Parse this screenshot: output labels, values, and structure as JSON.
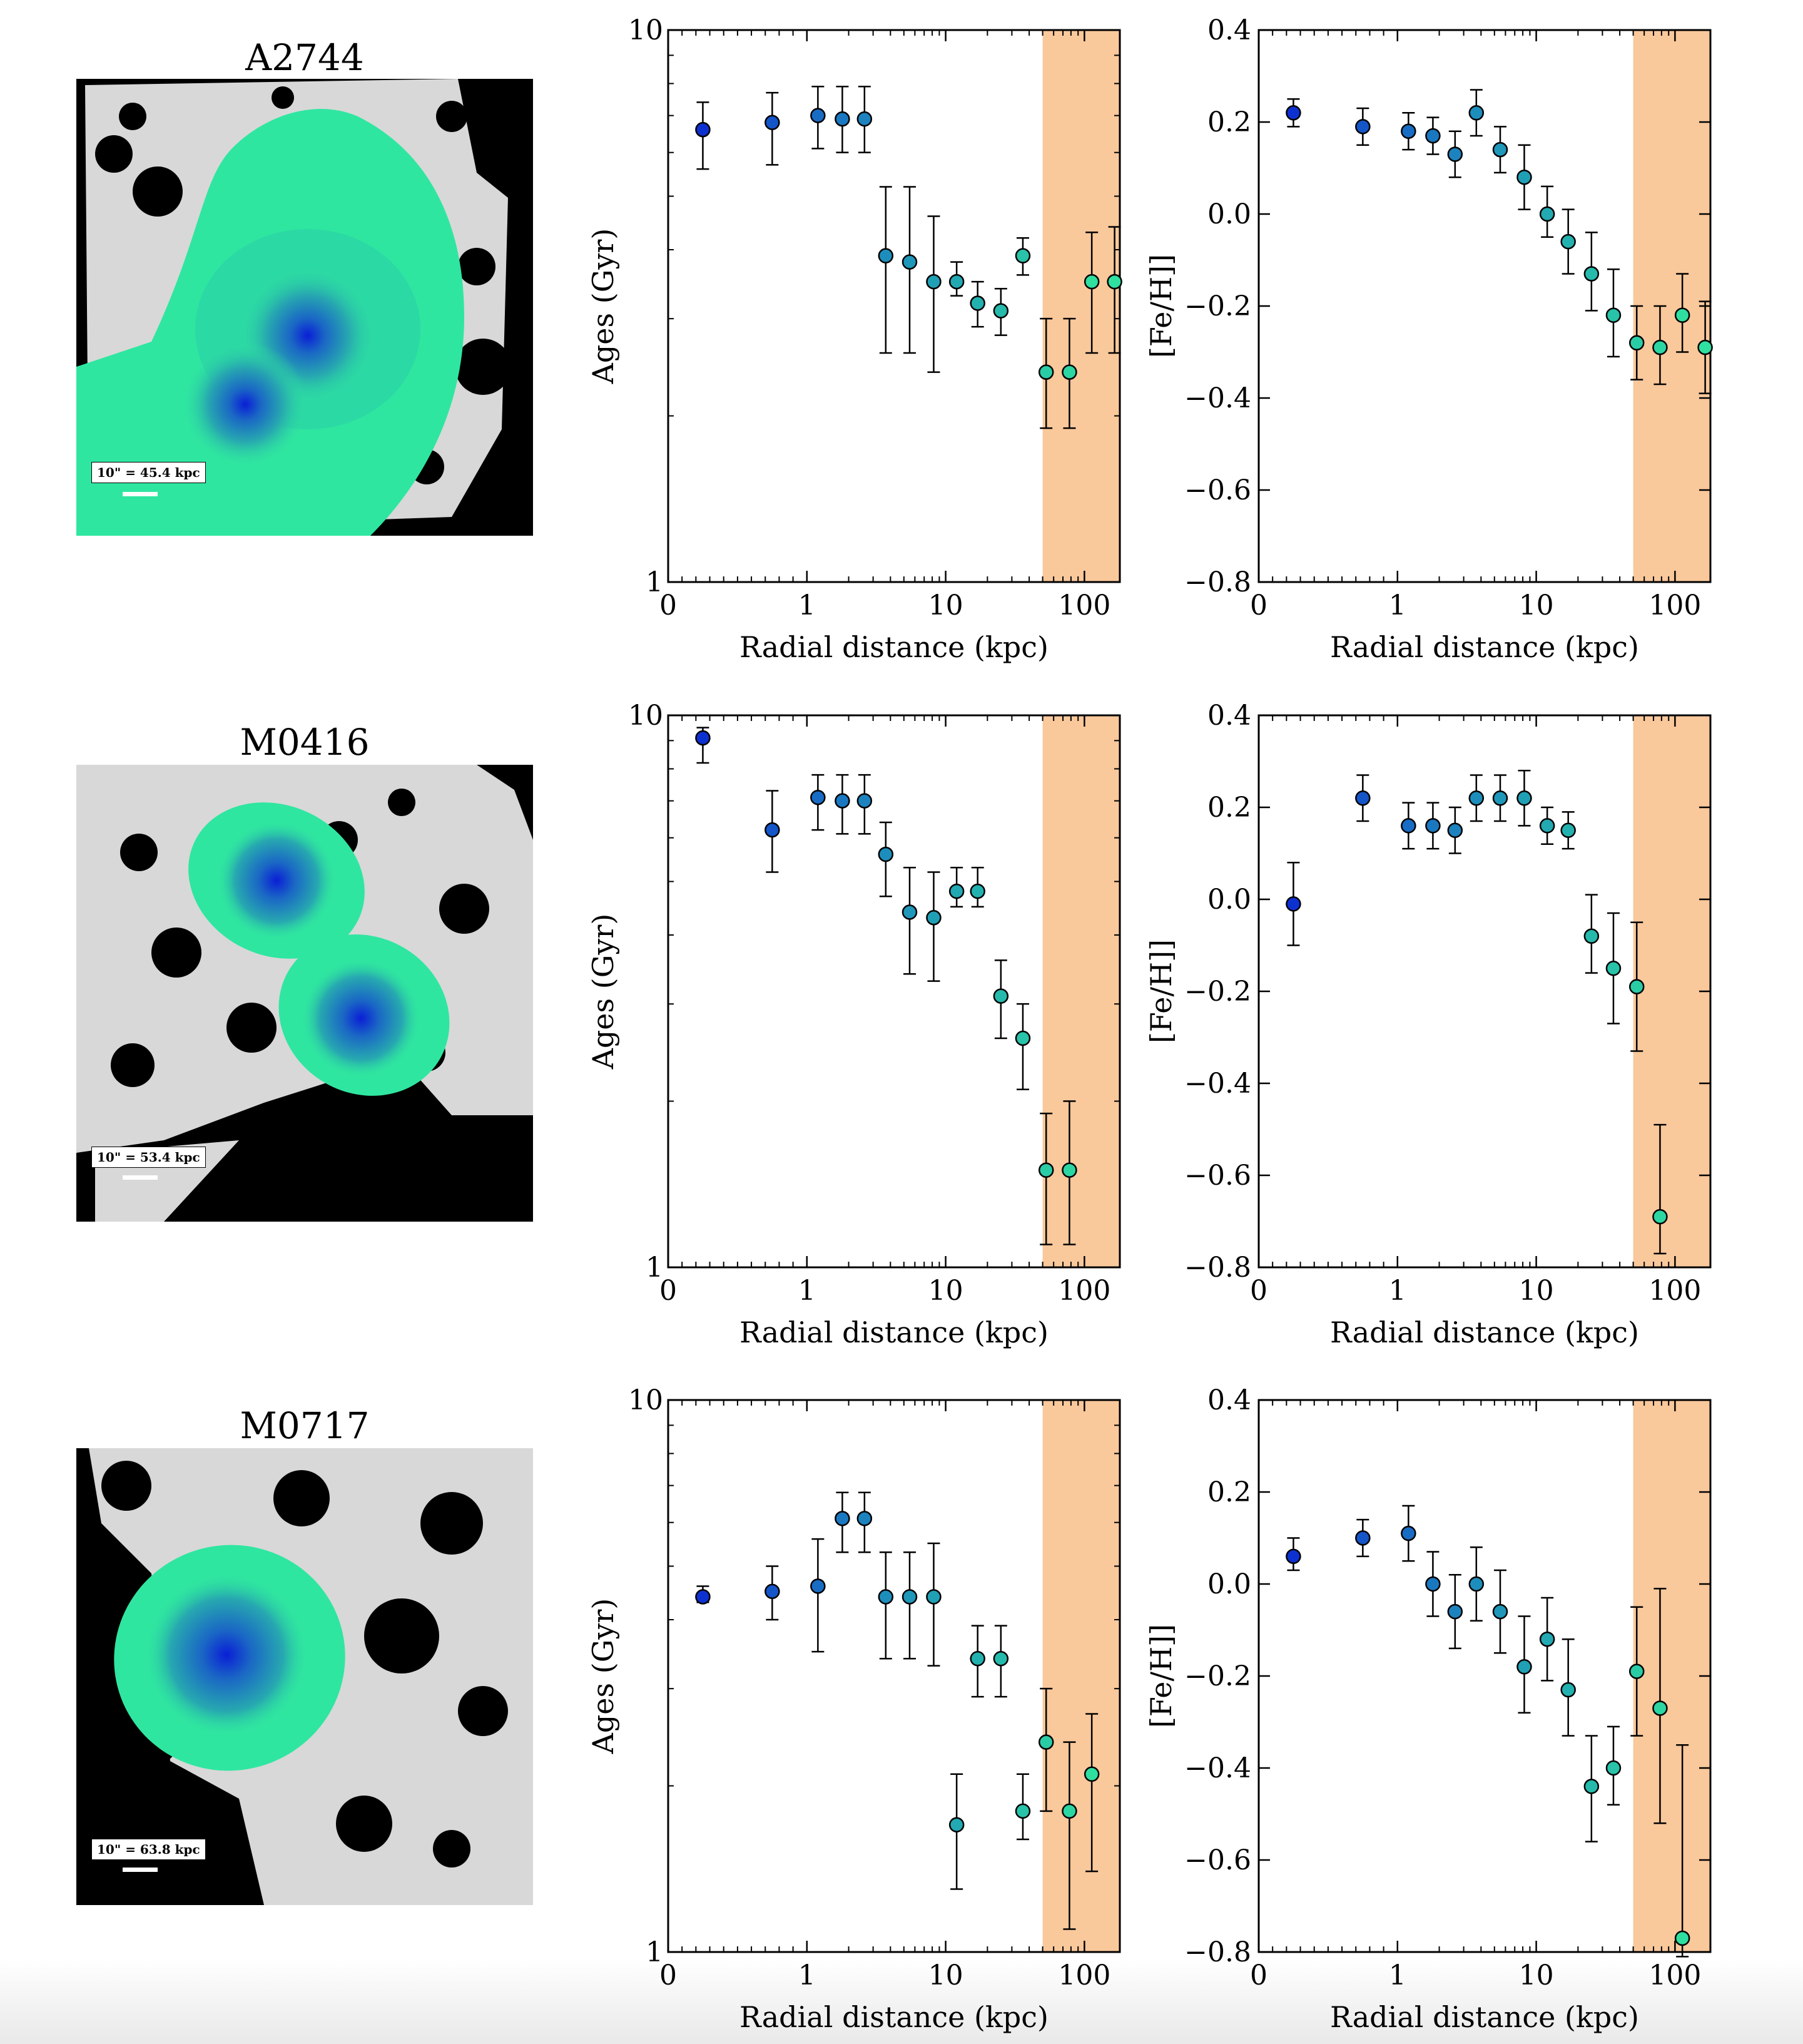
{
  "colors": {
    "band": "#f9c89b",
    "marker_edge": "#000000",
    "errorbar": "#000000",
    "gradient_stops": [
      "#0a1fd6",
      "#1456c8",
      "#1d8cbd",
      "#24b5ad",
      "#2fe0a0"
    ],
    "map_fill": "#2fe6a0",
    "map_bg": "#d9d9d9"
  },
  "panels": [
    {
      "name": "A2744",
      "scale_label": "10\" = 45.4 kpc"
    },
    {
      "name": "M0416",
      "scale_label": "10\" = 53.4 kpc"
    },
    {
      "name": "M0717",
      "scale_label": "10\" = 63.8 kpc"
    }
  ],
  "chart_data": [
    {
      "panel": "A2744",
      "type": "scatter",
      "quantity": "ages",
      "xlabel": "Radial distance (kpc)",
      "ylabel": "Ages (Gyr)",
      "xscale": "symlog",
      "xlim": [
        0,
        180
      ],
      "xticks": [
        "0",
        "1",
        "10",
        "100"
      ],
      "yscale": "log",
      "ylim": [
        1,
        10
      ],
      "yticks": [
        "1",
        "10"
      ],
      "shaded_range": [
        50,
        180
      ],
      "x": [
        0.25,
        0.75,
        1.2,
        1.8,
        2.6,
        3.7,
        5.5,
        8.2,
        12,
        17,
        25,
        36,
        53,
        78,
        113,
        165
      ],
      "y": [
        6.6,
        6.8,
        7.0,
        6.9,
        6.9,
        3.9,
        3.8,
        3.5,
        3.5,
        3.2,
        3.1,
        3.9,
        2.4,
        2.4,
        3.5,
        3.5
      ],
      "y_low": [
        5.6,
        5.7,
        6.1,
        6.0,
        6.0,
        2.6,
        2.6,
        2.4,
        3.3,
        2.9,
        2.8,
        3.6,
        1.9,
        1.9,
        2.6,
        2.6
      ],
      "y_high": [
        7.4,
        7.7,
        7.9,
        7.9,
        7.9,
        5.2,
        5.2,
        4.6,
        3.8,
        3.5,
        3.4,
        4.2,
        3.0,
        3.0,
        4.3,
        4.4
      ]
    },
    {
      "panel": "A2744",
      "type": "scatter",
      "quantity": "feh",
      "xlabel": "Radial distance (kpc)",
      "ylabel": "[Fe/H]]",
      "xscale": "symlog",
      "xlim": [
        0,
        180
      ],
      "xticks": [
        "0",
        "1",
        "10",
        "100"
      ],
      "yscale": "linear",
      "ylim": [
        -0.8,
        0.4
      ],
      "yticks": [
        "-0.8",
        "-0.6",
        "-0.4",
        "-0.2",
        "0.0",
        "0.2",
        "0.4"
      ],
      "shaded_range": [
        50,
        180
      ],
      "x": [
        0.25,
        0.75,
        1.2,
        1.8,
        2.6,
        3.7,
        5.5,
        8.2,
        12,
        17,
        25,
        36,
        53,
        78,
        113,
        165
      ],
      "y": [
        0.22,
        0.19,
        0.18,
        0.17,
        0.13,
        0.22,
        0.14,
        0.08,
        0.0,
        -0.06,
        -0.13,
        -0.22,
        -0.28,
        -0.29,
        -0.22,
        -0.29
      ],
      "y_low": [
        0.19,
        0.15,
        0.14,
        0.13,
        0.08,
        0.17,
        0.09,
        0.01,
        -0.05,
        -0.13,
        -0.21,
        -0.31,
        -0.36,
        -0.37,
        -0.3,
        -0.39
      ],
      "y_high": [
        0.25,
        0.23,
        0.22,
        0.21,
        0.18,
        0.27,
        0.19,
        0.15,
        0.06,
        0.01,
        -0.04,
        -0.12,
        -0.2,
        -0.2,
        -0.13,
        -0.19
      ]
    },
    {
      "panel": "M0416",
      "type": "scatter",
      "quantity": "ages",
      "xlabel": "Radial distance (kpc)",
      "ylabel": "Ages (Gyr)",
      "xscale": "symlog",
      "xlim": [
        0,
        180
      ],
      "xticks": [
        "0",
        "1",
        "10",
        "100"
      ],
      "yscale": "log",
      "ylim": [
        1,
        10
      ],
      "yticks": [
        "1",
        "10"
      ],
      "shaded_range": [
        50,
        180
      ],
      "x": [
        0.25,
        0.75,
        1.2,
        1.8,
        2.6,
        3.7,
        5.5,
        8.2,
        12,
        17,
        25,
        36,
        53,
        78
      ],
      "y": [
        9.1,
        6.2,
        7.1,
        7.0,
        7.0,
        5.6,
        4.4,
        4.3,
        4.8,
        4.8,
        3.1,
        2.6,
        1.5,
        1.5
      ],
      "y_low": [
        8.2,
        5.2,
        6.2,
        6.1,
        6.1,
        4.7,
        3.4,
        3.3,
        4.5,
        4.5,
        2.6,
        2.1,
        1.1,
        1.1
      ],
      "y_high": [
        9.5,
        7.3,
        7.8,
        7.8,
        7.8,
        6.4,
        5.3,
        5.2,
        5.3,
        5.3,
        3.6,
        3.0,
        1.9,
        2.0
      ]
    },
    {
      "panel": "M0416",
      "type": "scatter",
      "quantity": "feh",
      "xlabel": "Radial distance (kpc)",
      "ylabel": "[Fe/H]]",
      "xscale": "symlog",
      "xlim": [
        0,
        180
      ],
      "xticks": [
        "0",
        "1",
        "10",
        "100"
      ],
      "yscale": "linear",
      "ylim": [
        -0.8,
        0.4
      ],
      "yticks": [
        "-0.8",
        "-0.6",
        "-0.4",
        "-0.2",
        "0.0",
        "0.2",
        "0.4"
      ],
      "shaded_range": [
        50,
        180
      ],
      "x": [
        0.25,
        0.75,
        1.2,
        1.8,
        2.6,
        3.7,
        5.5,
        8.2,
        12,
        17,
        25,
        36,
        53,
        78
      ],
      "y": [
        -0.01,
        0.22,
        0.16,
        0.16,
        0.15,
        0.22,
        0.22,
        0.22,
        0.16,
        0.15,
        -0.08,
        -0.15,
        -0.19,
        -0.69
      ],
      "y_low": [
        -0.1,
        0.17,
        0.11,
        0.11,
        0.1,
        0.17,
        0.17,
        0.16,
        0.12,
        0.11,
        -0.16,
        -0.27,
        -0.33,
        -0.77
      ],
      "y_high": [
        0.08,
        0.27,
        0.21,
        0.21,
        0.2,
        0.27,
        0.27,
        0.28,
        0.2,
        0.19,
        0.01,
        -0.03,
        -0.05,
        -0.49
      ]
    },
    {
      "panel": "M0717",
      "type": "scatter",
      "quantity": "ages",
      "xlabel": "Radial distance (kpc)",
      "ylabel": "Ages (Gyr)",
      "xscale": "symlog",
      "xlim": [
        0,
        180
      ],
      "xticks": [
        "0",
        "1",
        "10",
        "100"
      ],
      "yscale": "log",
      "ylim": [
        1,
        10
      ],
      "yticks": [
        "1",
        "10"
      ],
      "shaded_range": [
        50,
        180
      ],
      "x": [
        0.25,
        0.75,
        1.2,
        1.8,
        2.6,
        3.7,
        5.5,
        8.2,
        12,
        17,
        25,
        36,
        53,
        78,
        113
      ],
      "y": [
        4.4,
        4.5,
        4.6,
        6.1,
        6.1,
        4.4,
        4.4,
        4.4,
        1.7,
        3.4,
        3.4,
        1.8,
        2.4,
        1.8,
        2.1
      ],
      "y_low": [
        4.3,
        4.0,
        3.5,
        5.3,
        5.3,
        3.4,
        3.4,
        3.3,
        1.3,
        2.9,
        2.9,
        1.6,
        1.8,
        1.1,
        1.4
      ],
      "y_high": [
        4.6,
        5.0,
        5.6,
        6.8,
        6.8,
        5.3,
        5.3,
        5.5,
        2.1,
        3.9,
        3.9,
        2.1,
        3.0,
        2.4,
        2.7
      ]
    },
    {
      "panel": "M0717",
      "type": "scatter",
      "quantity": "feh",
      "xlabel": "Radial distance (kpc)",
      "ylabel": "[Fe/H]]",
      "xscale": "symlog",
      "xlim": [
        0,
        180
      ],
      "xticks": [
        "0",
        "1",
        "10",
        "100"
      ],
      "yscale": "linear",
      "ylim": [
        -0.8,
        0.4
      ],
      "yticks": [
        "-0.8",
        "-0.6",
        "-0.4",
        "-0.2",
        "0.0",
        "0.2",
        "0.4"
      ],
      "shaded_range": [
        50,
        180
      ],
      "x": [
        0.25,
        0.75,
        1.2,
        1.8,
        2.6,
        3.7,
        5.5,
        8.2,
        12,
        17,
        25,
        36,
        53,
        78,
        113
      ],
      "y": [
        0.06,
        0.1,
        0.11,
        0.0,
        -0.06,
        0.0,
        -0.06,
        -0.18,
        -0.12,
        -0.23,
        -0.44,
        -0.4,
        -0.19,
        -0.27,
        -0.77
      ],
      "y_low": [
        0.03,
        0.06,
        0.05,
        -0.07,
        -0.14,
        -0.08,
        -0.15,
        -0.28,
        -0.21,
        -0.33,
        -0.56,
        -0.48,
        -0.33,
        -0.52,
        -0.81
      ],
      "y_high": [
        0.1,
        0.14,
        0.17,
        0.07,
        0.02,
        0.08,
        0.03,
        -0.07,
        -0.03,
        -0.12,
        -0.33,
        -0.31,
        -0.05,
        -0.01,
        -0.35
      ]
    }
  ]
}
